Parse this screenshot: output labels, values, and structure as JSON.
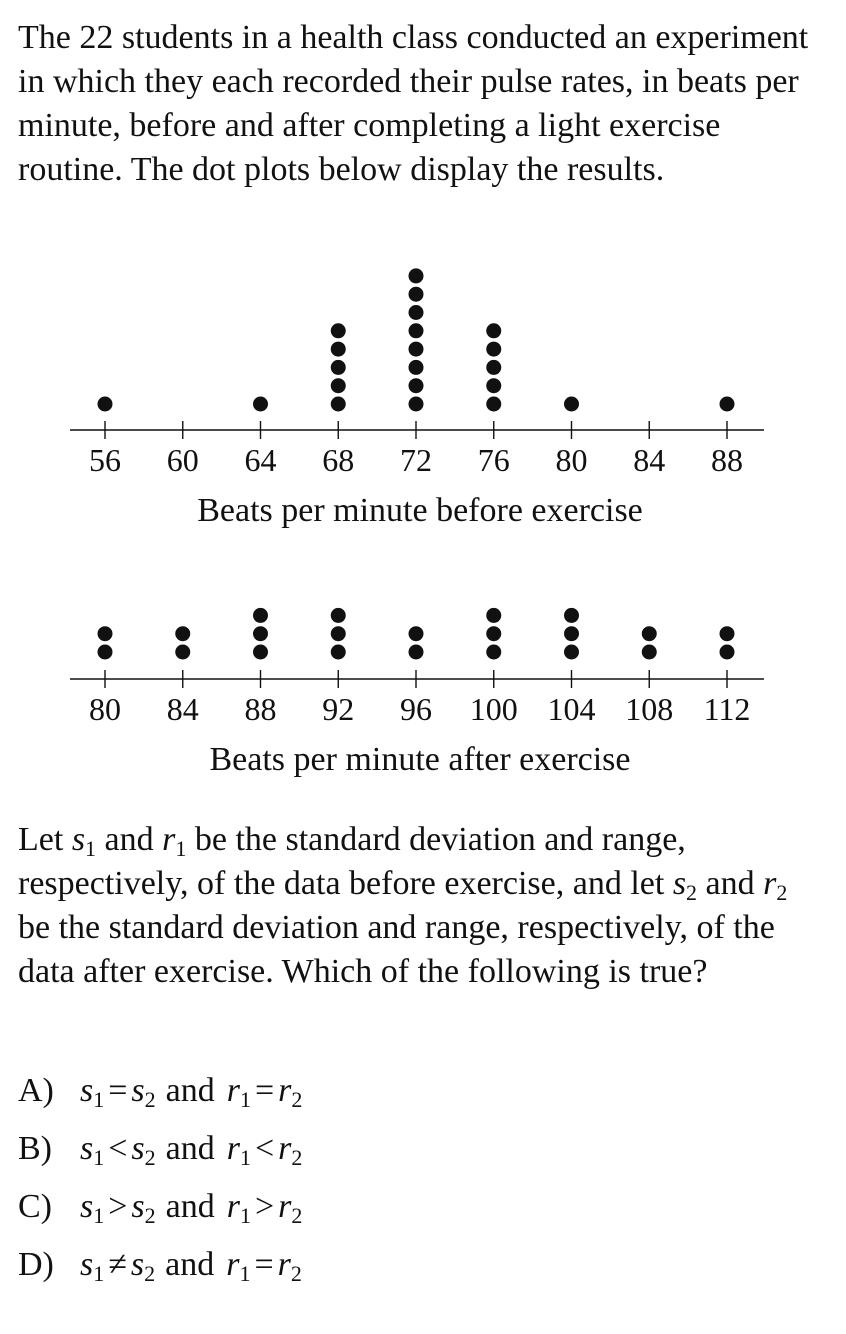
{
  "intro": "The 22 students in a health class conducted an experiment in which they each recorded their pulse rates, in beats per minute, before and after completing a light exercise routine. The dot plots below display the results.",
  "question": {
    "p1": "Let ",
    "s1": "s",
    "s1_sub": "1",
    "p2": " and ",
    "r1": "r",
    "r1_sub": "1",
    "p3": " be the standard deviation and range, respectively, of the data before exercise, and let ",
    "s2": "s",
    "s2_sub": "2",
    "p4": " and ",
    "r2": "r",
    "r2_sub": "2",
    "p5": " be the standard deviation and range, respectively, of the data after exercise. Which of the following is true?"
  },
  "choices": [
    {
      "letter": "A)",
      "op1": "=",
      "word": "and",
      "op2": "="
    },
    {
      "letter": "B)",
      "op1": "<",
      "word": "and",
      "op2": "<"
    },
    {
      "letter": "C)",
      "op1": ">",
      "word": "and",
      "op2": ">"
    },
    {
      "letter": "D)",
      "op1": "≠",
      "word": "and",
      "op2": "="
    }
  ],
  "chart_data": [
    {
      "type": "scatter",
      "subtype": "dot-plot",
      "xlabel": "Beats per minute before exercise",
      "ticks": [
        56,
        60,
        64,
        68,
        72,
        76,
        80,
        84,
        88
      ],
      "xlim": [
        56,
        88
      ],
      "points": [
        {
          "x": 56,
          "count": 1
        },
        {
          "x": 64,
          "count": 1
        },
        {
          "x": 68,
          "count": 5
        },
        {
          "x": 72,
          "count": 8
        },
        {
          "x": 76,
          "count": 5
        },
        {
          "x": 80,
          "count": 1
        },
        {
          "x": 88,
          "count": 1
        }
      ]
    },
    {
      "type": "scatter",
      "subtype": "dot-plot",
      "xlabel": "Beats per minute after exercise",
      "ticks": [
        80,
        84,
        88,
        92,
        96,
        100,
        104,
        108,
        112
      ],
      "xlim": [
        80,
        112
      ],
      "points": [
        {
          "x": 80,
          "count": 2
        },
        {
          "x": 84,
          "count": 2
        },
        {
          "x": 88,
          "count": 3
        },
        {
          "x": 92,
          "count": 3
        },
        {
          "x": 96,
          "count": 2
        },
        {
          "x": 100,
          "count": 3
        },
        {
          "x": 104,
          "count": 3
        },
        {
          "x": 108,
          "count": 2
        },
        {
          "x": 112,
          "count": 2
        }
      ]
    }
  ]
}
